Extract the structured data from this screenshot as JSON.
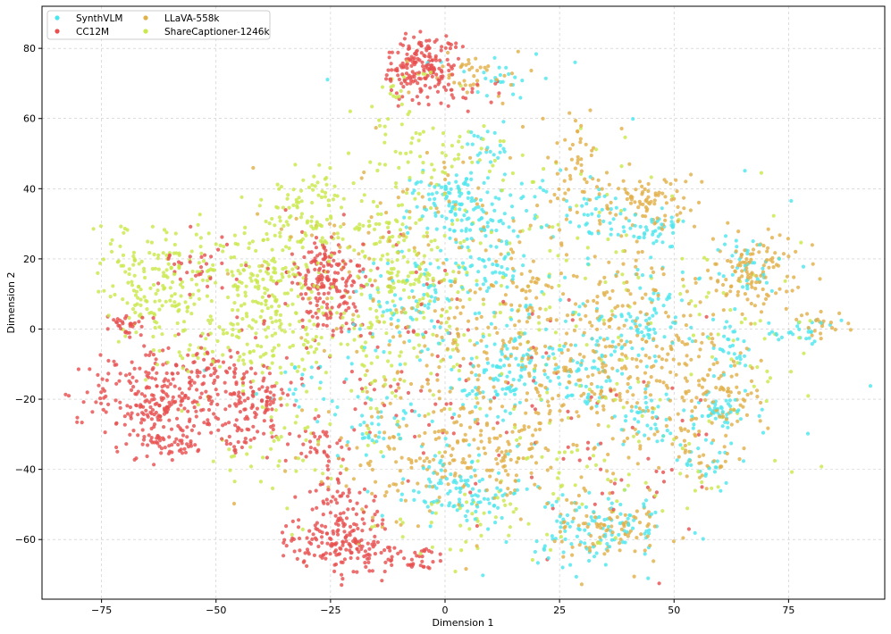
{
  "chart_data": {
    "type": "scatter",
    "title": "",
    "xlabel": "Dimension 1",
    "ylabel": "Dimension 2",
    "xlim": [
      -88,
      96
    ],
    "ylim": [
      -77,
      92
    ],
    "xticks": [
      -75,
      -50,
      -25,
      0,
      25,
      50,
      75
    ],
    "yticks": [
      -60,
      -40,
      -20,
      0,
      20,
      40,
      60,
      80
    ],
    "grid": true,
    "legend": {
      "position": "top-left",
      "columns": 2
    },
    "random_seed": 20240611,
    "series": [
      {
        "name": "SynthVLM",
        "color": "#4ee6ee",
        "clusters": [
          {
            "cx": 0,
            "cy": 37,
            "sx": 5,
            "sy": 4,
            "n": 70
          },
          {
            "cx": 8,
            "cy": 30,
            "sx": 6,
            "sy": 6,
            "n": 80
          },
          {
            "cx": 7,
            "cy": 15,
            "sx": 4,
            "sy": 3,
            "n": 40
          },
          {
            "cx": -8,
            "cy": 5,
            "sx": 6,
            "sy": 8,
            "n": 70
          },
          {
            "cx": 13,
            "cy": -13,
            "sx": 5,
            "sy": 6,
            "n": 90
          },
          {
            "cx": 0,
            "cy": -45,
            "sx": 6,
            "sy": 5,
            "n": 70
          },
          {
            "cx": 8,
            "cy": -50,
            "sx": 4,
            "sy": 3,
            "n": 35
          },
          {
            "cx": 32,
            "cy": -56,
            "sx": 8,
            "sy": 5,
            "n": 110
          },
          {
            "cx": 32,
            "cy": 33,
            "sx": 4,
            "sy": 4,
            "n": 40
          },
          {
            "cx": 45,
            "cy": 28,
            "sx": 4,
            "sy": 3,
            "n": 40
          },
          {
            "cx": 42,
            "cy": 2,
            "sx": 5,
            "sy": 6,
            "n": 70
          },
          {
            "cx": 30,
            "cy": -13,
            "sx": 5,
            "sy": 5,
            "n": 55
          },
          {
            "cx": 45,
            "cy": -26,
            "sx": 3,
            "sy": 4,
            "n": 35
          },
          {
            "cx": 60,
            "cy": -22,
            "sx": 4,
            "sy": 3,
            "n": 45
          },
          {
            "cx": 62,
            "cy": -5,
            "sx": 3,
            "sy": 4,
            "n": 30
          },
          {
            "cx": 66,
            "cy": 18,
            "sx": 4,
            "sy": 4,
            "n": 35
          },
          {
            "cx": 78,
            "cy": -1,
            "sx": 5,
            "sy": 2,
            "n": 25
          },
          {
            "cx": 10,
            "cy": 72,
            "sx": 5,
            "sy": 3,
            "n": 25
          },
          {
            "cx": 9,
            "cy": 52,
            "sx": 3,
            "sy": 3,
            "n": 20
          },
          {
            "cx": -15,
            "cy": -28,
            "sx": 4,
            "sy": 4,
            "n": 35
          },
          {
            "cx": -30,
            "cy": -15,
            "sx": 4,
            "sy": 4,
            "n": 20
          },
          {
            "cx": 58,
            "cy": -38,
            "sx": 4,
            "sy": 3,
            "n": 25
          },
          {
            "cx": 20,
            "cy": 5,
            "sx": 25,
            "sy": 25,
            "n": 120
          }
        ]
      },
      {
        "name": "CC12M",
        "color": "#e85050",
        "clusters": [
          {
            "cx": -5,
            "cy": 76,
            "sx": 4,
            "sy": 4,
            "n": 160
          },
          {
            "cx": -2,
            "cy": 68,
            "sx": 6,
            "sy": 3,
            "n": 40
          },
          {
            "cx": -63,
            "cy": -20,
            "sx": 8,
            "sy": 7,
            "n": 260
          },
          {
            "cx": -69,
            "cy": 1,
            "sx": 3,
            "sy": 2,
            "n": 30
          },
          {
            "cx": -60,
            "cy": -33,
            "sx": 3,
            "sy": 2,
            "n": 40
          },
          {
            "cx": -52,
            "cy": -12,
            "sx": 4,
            "sy": 4,
            "n": 50
          },
          {
            "cx": -42,
            "cy": -20,
            "sx": 4,
            "sy": 4,
            "n": 90
          },
          {
            "cx": -45,
            "cy": -30,
            "sx": 3,
            "sy": 3,
            "n": 30
          },
          {
            "cx": -25,
            "cy": 12,
            "sx": 4,
            "sy": 6,
            "n": 150
          },
          {
            "cx": -27,
            "cy": 20,
            "sx": 2,
            "sy": 2,
            "n": 25
          },
          {
            "cx": -25,
            "cy": -60,
            "sx": 5,
            "sy": 4,
            "n": 110
          },
          {
            "cx": -18,
            "cy": -60,
            "sx": 4,
            "sy": 5,
            "n": 70
          },
          {
            "cx": -23,
            "cy": -47,
            "sx": 3,
            "sy": 3,
            "n": 40
          },
          {
            "cx": -27,
            "cy": -34,
            "sx": 3,
            "sy": 3,
            "n": 35
          },
          {
            "cx": -7,
            "cy": -65,
            "sx": 3,
            "sy": 2,
            "n": 35
          },
          {
            "cx": -55,
            "cy": 18,
            "sx": 4,
            "sy": 4,
            "n": 30
          },
          {
            "cx": -20,
            "cy": -5,
            "sx": 14,
            "sy": 14,
            "n": 90
          },
          {
            "cx": 15,
            "cy": -20,
            "sx": 22,
            "sy": 20,
            "n": 50
          },
          {
            "cx": 40,
            "cy": -40,
            "sx": 8,
            "sy": 6,
            "n": 25
          }
        ]
      },
      {
        "name": "LLaVA-558k",
        "color": "#e2b048",
        "clusters": [
          {
            "cx": 15,
            "cy": -10,
            "sx": 16,
            "sy": 20,
            "n": 420
          },
          {
            "cx": 42,
            "cy": -5,
            "sx": 12,
            "sy": 14,
            "n": 220
          },
          {
            "cx": 45,
            "cy": 36,
            "sx": 5,
            "sy": 4,
            "n": 80
          },
          {
            "cx": 68,
            "cy": 16,
            "sx": 5,
            "sy": 6,
            "n": 110
          },
          {
            "cx": 35,
            "cy": -57,
            "sx": 6,
            "sy": 4,
            "n": 90
          },
          {
            "cx": 5,
            "cy": -37,
            "sx": 8,
            "sy": 6,
            "n": 90
          },
          {
            "cx": 28,
            "cy": 48,
            "sx": 4,
            "sy": 7,
            "n": 50
          },
          {
            "cx": 60,
            "cy": -20,
            "sx": 6,
            "sy": 6,
            "n": 60
          },
          {
            "cx": 83,
            "cy": 2,
            "sx": 3,
            "sy": 2,
            "n": 20
          },
          {
            "cx": 8,
            "cy": 72,
            "sx": 6,
            "sy": 4,
            "n": 40
          },
          {
            "cx": -10,
            "cy": 25,
            "sx": 14,
            "sy": 15,
            "n": 80
          },
          {
            "cx": -15,
            "cy": -40,
            "sx": 10,
            "sy": 10,
            "n": 50
          },
          {
            "cx": 55,
            "cy": -38,
            "sx": 6,
            "sy": 4,
            "n": 30
          }
        ]
      },
      {
        "name": "ShareCaptioner-1246k",
        "color": "#c9e84a",
        "clusters": [
          {
            "cx": -62,
            "cy": 14,
            "sx": 7,
            "sy": 9,
            "n": 180
          },
          {
            "cx": -40,
            "cy": 12,
            "sx": 7,
            "sy": 11,
            "n": 210
          },
          {
            "cx": -30,
            "cy": 35,
            "sx": 5,
            "sy": 6,
            "n": 80
          },
          {
            "cx": -10,
            "cy": 20,
            "sx": 9,
            "sy": 12,
            "n": 190
          },
          {
            "cx": -15,
            "cy": -5,
            "sx": 12,
            "sy": 12,
            "n": 120
          },
          {
            "cx": -45,
            "cy": -8,
            "sx": 10,
            "sy": 6,
            "n": 70
          },
          {
            "cx": -35,
            "cy": -35,
            "sx": 8,
            "sy": 10,
            "n": 45
          },
          {
            "cx": 0,
            "cy": 50,
            "sx": 8,
            "sy": 6,
            "n": 50
          },
          {
            "cx": 5,
            "cy": -55,
            "sx": 12,
            "sy": 8,
            "n": 45
          },
          {
            "cx": 25,
            "cy": 10,
            "sx": 14,
            "sy": 20,
            "n": 110
          },
          {
            "cx": -10,
            "cy": 65,
            "sx": 5,
            "sy": 5,
            "n": 25
          },
          {
            "cx": 35,
            "cy": -40,
            "sx": 15,
            "sy": 10,
            "n": 60
          },
          {
            "cx": 65,
            "cy": 0,
            "sx": 8,
            "sy": 12,
            "n": 40
          }
        ]
      }
    ]
  }
}
